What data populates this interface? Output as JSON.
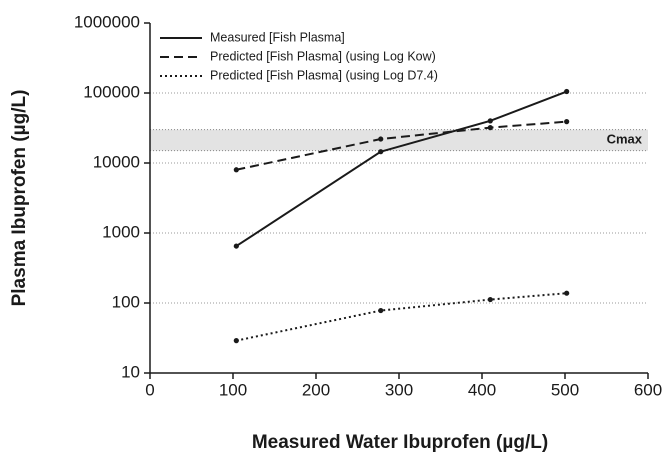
{
  "chart_data": {
    "type": "line",
    "xlabel": "Measured Water Ibuprofen (µg/L)",
    "ylabel": "Plasma Ibuprofen (µg/L)",
    "xlim": [
      0,
      600
    ],
    "xticks": [
      0,
      100,
      200,
      300,
      400,
      500,
      600
    ],
    "ylim": [
      10,
      1000000
    ],
    "yticks": [
      10,
      100,
      1000,
      10000,
      100000,
      1000000
    ],
    "yscale": "log",
    "grid": true,
    "legend": "upper left",
    "band": {
      "label": "Cmax",
      "ylim": [
        15000,
        30000
      ],
      "color": "#e3e3e3"
    },
    "series": [
      {
        "name": "Measured [Fish Plasma]",
        "color": "#1a1a1a",
        "dash": "solid",
        "x": [
          104,
          278,
          410,
          502
        ],
        "values": [
          650,
          14500,
          40000,
          105000
        ]
      },
      {
        "name": "Predicted [Fish Plasma] (using Log Kow)",
        "color": "#1a1a1a",
        "dash": "dashed",
        "x": [
          104,
          278,
          410,
          502
        ],
        "values": [
          8000,
          22000,
          32000,
          39000
        ]
      },
      {
        "name": "Predicted [Fish Plasma] (using Log D7.4)",
        "color": "#1a1a1a",
        "dash": "dotted",
        "x": [
          104,
          278,
          410,
          502
        ],
        "values": [
          29,
          78,
          112,
          138
        ]
      }
    ]
  }
}
